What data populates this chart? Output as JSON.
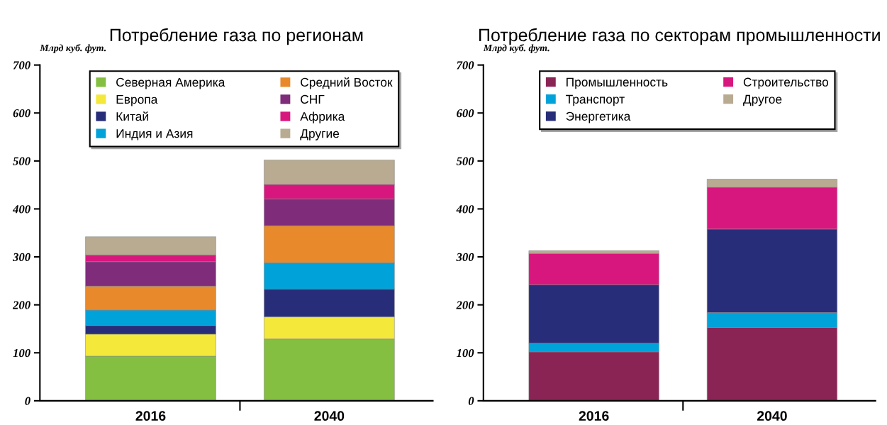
{
  "chart_data": [
    {
      "type": "bar",
      "title": "Потребление газа по регионам",
      "ylabel": "Млрд куб. фут.",
      "categories": [
        "2016",
        "2040"
      ],
      "stacked": true,
      "ylim": [
        0,
        700
      ],
      "yticks": [
        0,
        100,
        200,
        300,
        400,
        500,
        600,
        700
      ],
      "grid": false,
      "legend": "top",
      "series": [
        {
          "name": "Северная Америка",
          "color": "#84bf41",
          "values": [
            93,
            129
          ]
        },
        {
          "name": "Европа",
          "color": "#f4e83a",
          "values": [
            46,
            46
          ]
        },
        {
          "name": "Китай",
          "color": "#272d78",
          "values": [
            18,
            58
          ]
        },
        {
          "name": "Индия и Азия",
          "color": "#00a3d9",
          "values": [
            32,
            55
          ]
        },
        {
          "name": "Средний Восток",
          "color": "#e8892c",
          "values": [
            50,
            77
          ]
        },
        {
          "name": "СНГ",
          "color": "#7f2c7b",
          "values": [
            51,
            56
          ]
        },
        {
          "name": "Африка",
          "color": "#d8177e",
          "values": [
            14,
            30
          ]
        },
        {
          "name": "Другие",
          "color": "#b8ab92",
          "values": [
            38,
            51
          ]
        }
      ]
    },
    {
      "type": "bar",
      "title": "Потребление газа по секторам промышленности",
      "ylabel": "Млрд куб. фут.",
      "categories": [
        "2016",
        "2040"
      ],
      "stacked": true,
      "ylim": [
        0,
        700
      ],
      "yticks": [
        0,
        100,
        200,
        300,
        400,
        500,
        600,
        700
      ],
      "grid": false,
      "legend": "top",
      "series": [
        {
          "name": "Промышленность",
          "color": "#8a2455",
          "values": [
            102,
            153
          ]
        },
        {
          "name": "Транспорт",
          "color": "#00a3d9",
          "values": [
            18,
            31
          ]
        },
        {
          "name": "Энергетика",
          "color": "#272d78",
          "values": [
            122,
            174
          ]
        },
        {
          "name": "Строительство",
          "color": "#d8177e",
          "values": [
            65,
            87
          ]
        },
        {
          "name": "Другое",
          "color": "#b8ab92",
          "values": [
            6,
            17
          ]
        }
      ]
    }
  ]
}
